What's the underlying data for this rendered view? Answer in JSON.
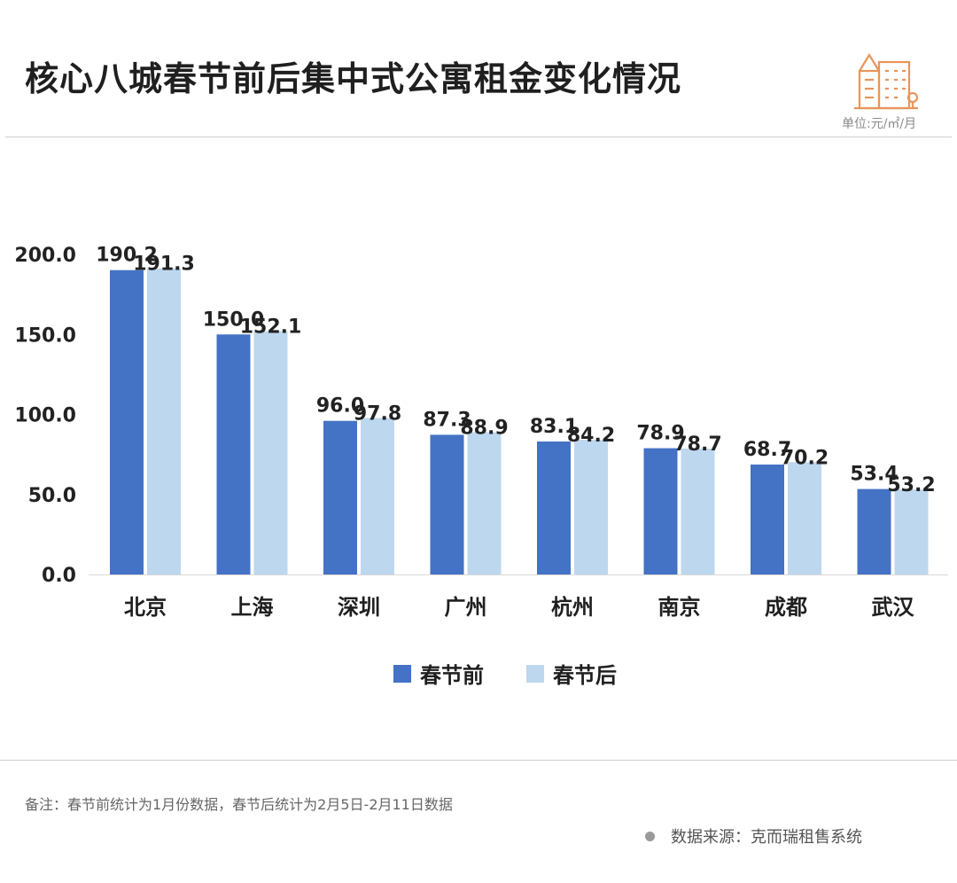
{
  "header": {
    "title": "核心八城春节前后集中式公寓租金变化情况",
    "unit": "单位:元/㎡/月"
  },
  "colors": {
    "before": "#4472C4",
    "after": "#BDD7EE",
    "logo": "#E8955A"
  },
  "chart_data": {
    "type": "bar",
    "title": "核心八城春节前后集中式公寓租金变化情况",
    "categories": [
      "北京",
      "上海",
      "深圳",
      "广州",
      "杭州",
      "南京",
      "成都",
      "武汉"
    ],
    "series": [
      {
        "name": "春节前",
        "values": [
          190.2,
          150.0,
          96.0,
          87.3,
          83.1,
          78.9,
          68.7,
          53.4
        ]
      },
      {
        "name": "春节后",
        "values": [
          191.3,
          152.1,
          97.8,
          88.9,
          84.2,
          78.7,
          70.2,
          53.2
        ]
      }
    ],
    "yticks": [
      "0.0",
      "50.0",
      "100.0",
      "150.0",
      "200.0"
    ],
    "ylim": [
      0,
      200
    ],
    "xlabel": "",
    "ylabel": "",
    "grid": false,
    "legend": "bottom-center"
  },
  "legend": {
    "before_label": "春节前",
    "after_label": "春节后"
  },
  "footer": {
    "note": "备注：春节前统计为1月份数据，春节后统计为2月5日-2月11日数据",
    "source": "数据来源：克而瑞租售系统"
  }
}
